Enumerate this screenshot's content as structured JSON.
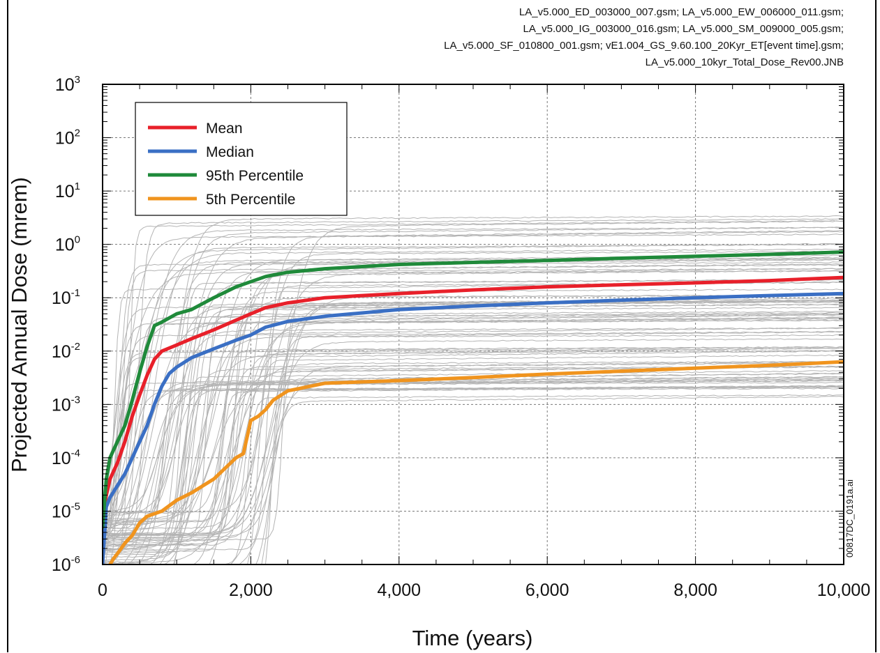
{
  "header_files": [
    "LA_v5.000_ED_003000_007.gsm; LA_v5.000_EW_006000_011.gsm;",
    "LA_v5.000_IG_003000_016.gsm; LA_v5.000_SM_009000_005.gsm;",
    "LA_v5.000_SF_010800_001.gsm; vE1.004_GS_9.60.100_20Kyr_ET[event time].gsm;",
    "LA_v5.000_10kyr_Total_Dose_Rev00.JNB"
  ],
  "side_note": "00817DC_0191a.ai",
  "colors": {
    "mean": "#e8202a",
    "median": "#3a6fc4",
    "p95": "#1f8a3a",
    "p5": "#f0941e",
    "realizations": "#b4b4b4",
    "grid": "#777777"
  },
  "chart_data": {
    "type": "line",
    "xlabel": "Time (years)",
    "ylabel": "Projected Annual Dose (mrem)",
    "xlim": [
      0,
      10000
    ],
    "ylim": [
      1e-06,
      1000
    ],
    "yscale": "log",
    "grid": true,
    "legend_position": "top-left",
    "x_ticks": [
      {
        "value": 0,
        "label": "0"
      },
      {
        "value": 2000,
        "label": "2,000"
      },
      {
        "value": 4000,
        "label": "4,000"
      },
      {
        "value": 6000,
        "label": "6,000"
      },
      {
        "value": 8000,
        "label": "8,000"
      },
      {
        "value": 10000,
        "label": "10,000"
      }
    ],
    "y_ticks": [
      {
        "value": 1e-06,
        "base": "10",
        "exp": "-6"
      },
      {
        "value": 1e-05,
        "base": "10",
        "exp": "-5"
      },
      {
        "value": 0.0001,
        "base": "10",
        "exp": "-4"
      },
      {
        "value": 0.001,
        "base": "10",
        "exp": "-3"
      },
      {
        "value": 0.01,
        "base": "10",
        "exp": "-2"
      },
      {
        "value": 0.1,
        "base": "10",
        "exp": "-1"
      },
      {
        "value": 1,
        "base": "10",
        "exp": "0"
      },
      {
        "value": 10,
        "base": "10",
        "exp": "1"
      },
      {
        "value": 100,
        "base": "10",
        "exp": "2"
      },
      {
        "value": 1000,
        "base": "10",
        "exp": "3"
      }
    ],
    "series": [
      {
        "name": "Mean",
        "color": "#e8202a",
        "x": [
          0,
          50,
          100,
          200,
          300,
          400,
          500,
          600,
          700,
          800,
          1000,
          1200,
          1500,
          1800,
          2000,
          2200,
          2500,
          3000,
          4000,
          5000,
          6000,
          7000,
          8000,
          9000,
          10000
        ],
        "y": [
          6e-06,
          2e-05,
          4e-05,
          8e-05,
          0.0002,
          0.0006,
          0.0015,
          0.0035,
          0.007,
          0.01,
          0.013,
          0.017,
          0.025,
          0.038,
          0.05,
          0.065,
          0.08,
          0.1,
          0.12,
          0.14,
          0.16,
          0.175,
          0.19,
          0.21,
          0.24
        ]
      },
      {
        "name": "Median",
        "color": "#3a6fc4",
        "x": [
          0,
          50,
          100,
          200,
          300,
          400,
          500,
          600,
          700,
          800,
          900,
          1000,
          1200,
          1500,
          1800,
          2000,
          2200,
          2500,
          3000,
          4000,
          5000,
          6000,
          7000,
          8000,
          9000,
          10000
        ],
        "y": [
          1e-06,
          1.2e-05,
          1.8e-05,
          3e-05,
          5e-05,
          0.0001,
          0.0002,
          0.0004,
          0.001,
          0.0022,
          0.0038,
          0.005,
          0.0075,
          0.011,
          0.016,
          0.02,
          0.028,
          0.036,
          0.045,
          0.06,
          0.07,
          0.08,
          0.09,
          0.1,
          0.11,
          0.12
        ]
      },
      {
        "name": "95th Percentile",
        "color": "#1f8a3a",
        "x": [
          0,
          50,
          100,
          200,
          300,
          400,
          500,
          600,
          700,
          800,
          1000,
          1200,
          1500,
          1800,
          2000,
          2200,
          2500,
          3000,
          4000,
          5000,
          6000,
          7000,
          8000,
          9000,
          10000
        ],
        "y": [
          5e-06,
          4e-05,
          0.0001,
          0.0002,
          0.0004,
          0.0012,
          0.004,
          0.012,
          0.03,
          0.035,
          0.05,
          0.06,
          0.1,
          0.16,
          0.2,
          0.25,
          0.3,
          0.35,
          0.42,
          0.46,
          0.5,
          0.55,
          0.6,
          0.65,
          0.72
        ]
      },
      {
        "name": "5th Percentile",
        "color": "#f0941e",
        "x": [
          100,
          150,
          200,
          300,
          400,
          500,
          600,
          800,
          1000,
          1200,
          1500,
          1800,
          1900,
          2000,
          2100,
          2200,
          2300,
          2500,
          3000,
          4000,
          5000,
          6000,
          7000,
          8000,
          9000,
          10000
        ],
        "y": [
          1e-06,
          1.3e-06,
          1.6e-06,
          2.5e-06,
          3.5e-06,
          6e-06,
          8e-06,
          1e-05,
          1.6e-05,
          2.2e-05,
          4e-05,
          0.0001,
          0.00012,
          0.0005,
          0.0006,
          0.0008,
          0.0012,
          0.0018,
          0.0025,
          0.0028,
          0.0032,
          0.0037,
          0.0042,
          0.0048,
          0.0054,
          0.0063
        ]
      }
    ],
    "realizations_band": {
      "color": "#b4b4b4",
      "count": 90,
      "final_min": 0.0014,
      "final_max": 3.5
    }
  }
}
